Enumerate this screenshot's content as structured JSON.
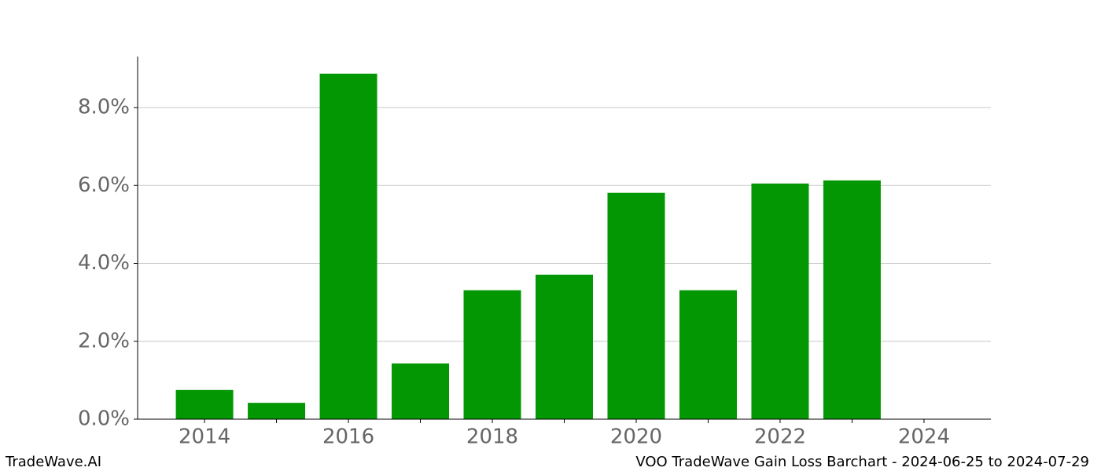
{
  "chart_data": {
    "type": "bar",
    "x": [
      2014,
      2015,
      2016,
      2017,
      2018,
      2019,
      2020,
      2021,
      2022,
      2023
    ],
    "values": [
      0.75,
      0.42,
      8.87,
      1.43,
      3.31,
      3.71,
      5.81,
      3.31,
      6.05,
      6.13
    ],
    "color": "#039703",
    "xlim": [
      2013.07,
      2024.93
    ],
    "xticks": [
      2014,
      2016,
      2018,
      2020,
      2022,
      2024
    ],
    "minor_xticks": [
      2015,
      2017,
      2019,
      2021,
      2023
    ],
    "ylim": [
      0,
      9.31
    ],
    "yticks": [
      {
        "value": 0,
        "label": "0.0%"
      },
      {
        "value": 2,
        "label": "2.0%"
      },
      {
        "value": 4,
        "label": "4.0%"
      },
      {
        "value": 6,
        "label": "6.0%"
      },
      {
        "value": 8,
        "label": "8.0%"
      }
    ],
    "grid": true,
    "footer_left": "TradeWave.AI",
    "footer_right": "VOO TradeWave Gain Loss Barchart - 2024-06-25 to 2024-07-29"
  }
}
